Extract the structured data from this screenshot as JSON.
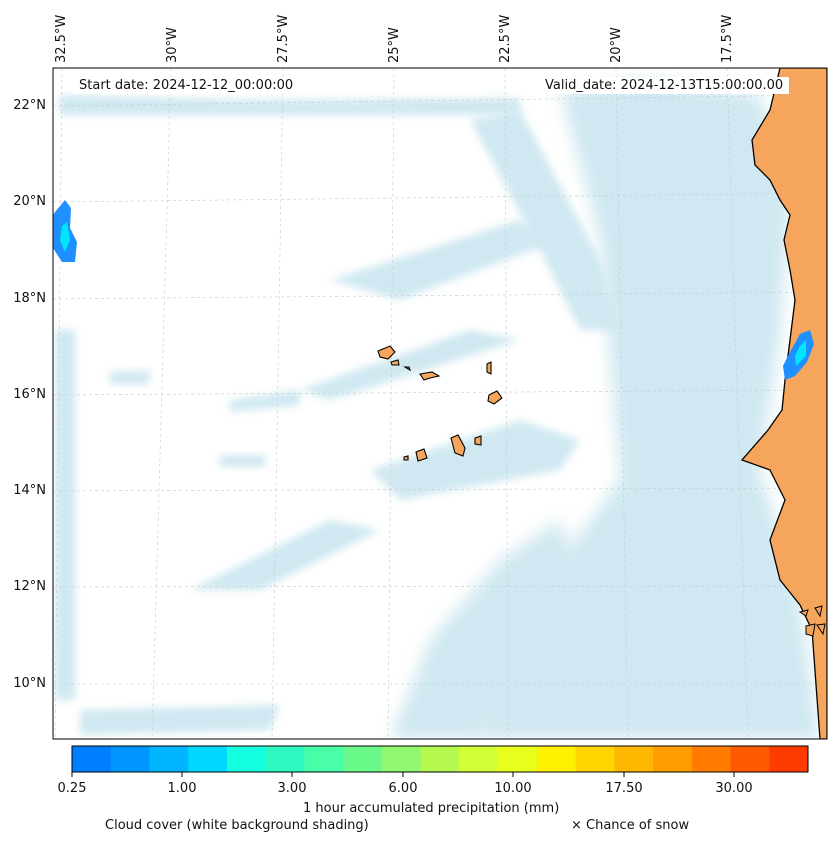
{
  "map": {
    "start_date": "Start date: 2024-12-12_00:00:00",
    "valid_date": "Valid_date: 2024-12-13T15:00:00.00",
    "lon_labels": [
      "32.5°W",
      "30°W",
      "27.5°W",
      "25°W",
      "22.5°W",
      "20°W",
      "17.5°W"
    ],
    "lat_labels": [
      "22°N",
      "20°N",
      "18°N",
      "16°N",
      "14°N",
      "12°N",
      "10°N"
    ],
    "extent": {
      "lon_min": -32.5,
      "lon_max": -15.2,
      "lat_min": 8.9,
      "lat_max": 22.8
    },
    "colors": {
      "land": "#f5a55c",
      "coast": "#000000",
      "cloud": "#a9d6e5",
      "precip_light": "#1e90ff",
      "precip_core": "#00e5ff"
    }
  },
  "colorbar": {
    "label": "1 hour accumulated precipitation (mm)",
    "tick_labels": [
      "0.25",
      "1.00",
      "3.00",
      "6.00",
      "10.00",
      "17.50",
      "30.00"
    ],
    "colors": [
      "#0080ff",
      "#0096ff",
      "#00b4ff",
      "#00d8ff",
      "#14ffe0",
      "#2ef8c0",
      "#48ffa8",
      "#6afa8a",
      "#90f870",
      "#b4f850",
      "#d2ff36",
      "#e8ff1c",
      "#fff000",
      "#ffd400",
      "#ffb800",
      "#ff9c00",
      "#ff7c00",
      "#ff5a00",
      "#ff3c00"
    ]
  },
  "legend": {
    "cloud_cover": "Cloud cover (white background shading)",
    "snow": "× Chance of snow"
  }
}
